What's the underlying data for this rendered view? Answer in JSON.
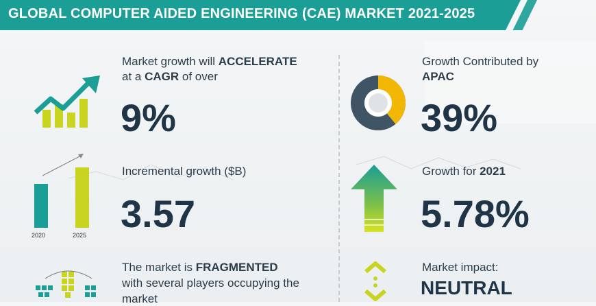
{
  "header": {
    "title": "GLOBAL COMPUTER AIDED ENGINEERING (CAE) MARKET 2021-2025"
  },
  "left": {
    "growth": {
      "line1_prefix": "Market growth will ",
      "line1_strong": "ACCELERATE",
      "line2_prefix": "at a ",
      "line2_strong": "CAGR",
      "line2_suffix": " of over",
      "value": "9%"
    },
    "incremental": {
      "label": "Incremental growth ($B)",
      "value": "3.57",
      "year_start": "2020",
      "year_end": "2025"
    },
    "vendor": {
      "line1_prefix": "The market is ",
      "line1_strong": "FRAGMENTED",
      "line2": "with several players occupying the",
      "line3": "market"
    }
  },
  "right": {
    "region": {
      "line1": "Growth Contributed by",
      "line2_strong": "APAC",
      "value": "39%",
      "share": 0.39
    },
    "yoy": {
      "label_prefix": "Growth for ",
      "label_strong": "2021",
      "value": "5.78%"
    },
    "impact": {
      "label": "Market impact:",
      "value": "NEUTRAL"
    }
  },
  "colors": {
    "teal": "#1a9e95",
    "lime": "#c8d41f",
    "navy": "#1f3547",
    "grey": "#5b7282"
  },
  "icons": [
    "growth-arrow-icon",
    "bar-growth-icon",
    "donut-icon",
    "up-arrow-icon",
    "network-icon",
    "neutral-arrows-icon"
  ]
}
